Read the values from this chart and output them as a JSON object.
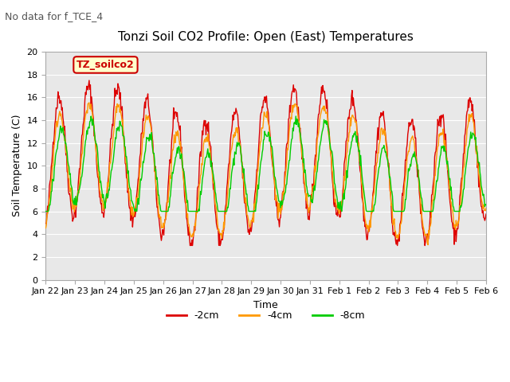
{
  "title": "Tonzi Soil CO2 Profile: Open (East) Temperatures",
  "subtitle": "No data for f_TCE_4",
  "xlabel": "Time",
  "ylabel": "Soil Temperature (C)",
  "legend_label": "TZ_soilco2",
  "series_labels": [
    "-2cm",
    "-4cm",
    "-8cm"
  ],
  "series_colors": [
    "#dd0000",
    "#ff9900",
    "#00cc00"
  ],
  "ylim": [
    0,
    20
  ],
  "xtick_labels": [
    "Jan 22",
    "Jan 23",
    "Jan 24",
    "Jan 25",
    "Jan 26",
    "Jan 27",
    "Jan 28",
    "Jan 29",
    "Jan 30",
    "Jan 31",
    "Feb 1",
    "Feb 2",
    "Feb 3",
    "Feb 4",
    "Feb 5",
    "Feb 6"
  ],
  "background_color": "#ffffff",
  "plot_bg_color": "#e8e8e8",
  "grid_color": "#ffffff"
}
